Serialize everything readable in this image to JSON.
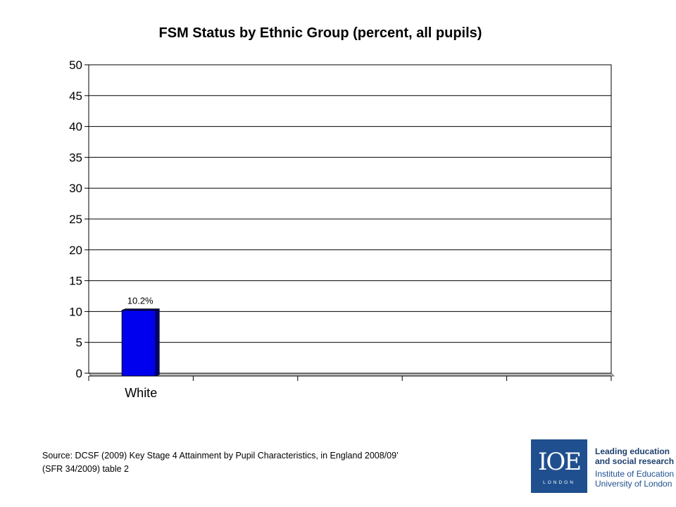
{
  "chart_data": {
    "type": "bar",
    "title": "FSM Status by Ethnic Group (percent, all pupils)",
    "categories": [
      "White",
      "",
      "",
      "",
      ""
    ],
    "values": [
      10.2,
      null,
      null,
      null,
      null
    ],
    "data_labels": [
      "10.2%",
      "",
      "",
      "",
      ""
    ],
    "xlabel": "",
    "ylabel": "",
    "ylim": [
      0,
      50
    ],
    "yticks": [
      0,
      5,
      10,
      15,
      20,
      25,
      30,
      35,
      40,
      45,
      50
    ],
    "ytick_labels": [
      "0",
      "5",
      "10",
      "15",
      "20",
      "25",
      "30",
      "35",
      "40",
      "45",
      "50"
    ],
    "grid": true,
    "legend": "none",
    "colors": {
      "bar": "#0000ee",
      "bar_side": "#00007a",
      "grid": "#000000",
      "floor": "#bdbdbd"
    }
  },
  "source": {
    "line1": "Source: DCSF (2009) Key Stage 4 Attainment by Pupil Characteristics, in England 2008/09’",
    "line2": "(SFR 34/2009) table 2"
  },
  "logo": {
    "mark": "IOE",
    "sub": "LONDON",
    "line1": "Leading education",
    "line2": "and social research",
    "line3": "Institute of Education",
    "line4": "University of London",
    "colors": {
      "box": "#1f4f8f",
      "text_strong": "#1f3f6f"
    }
  }
}
